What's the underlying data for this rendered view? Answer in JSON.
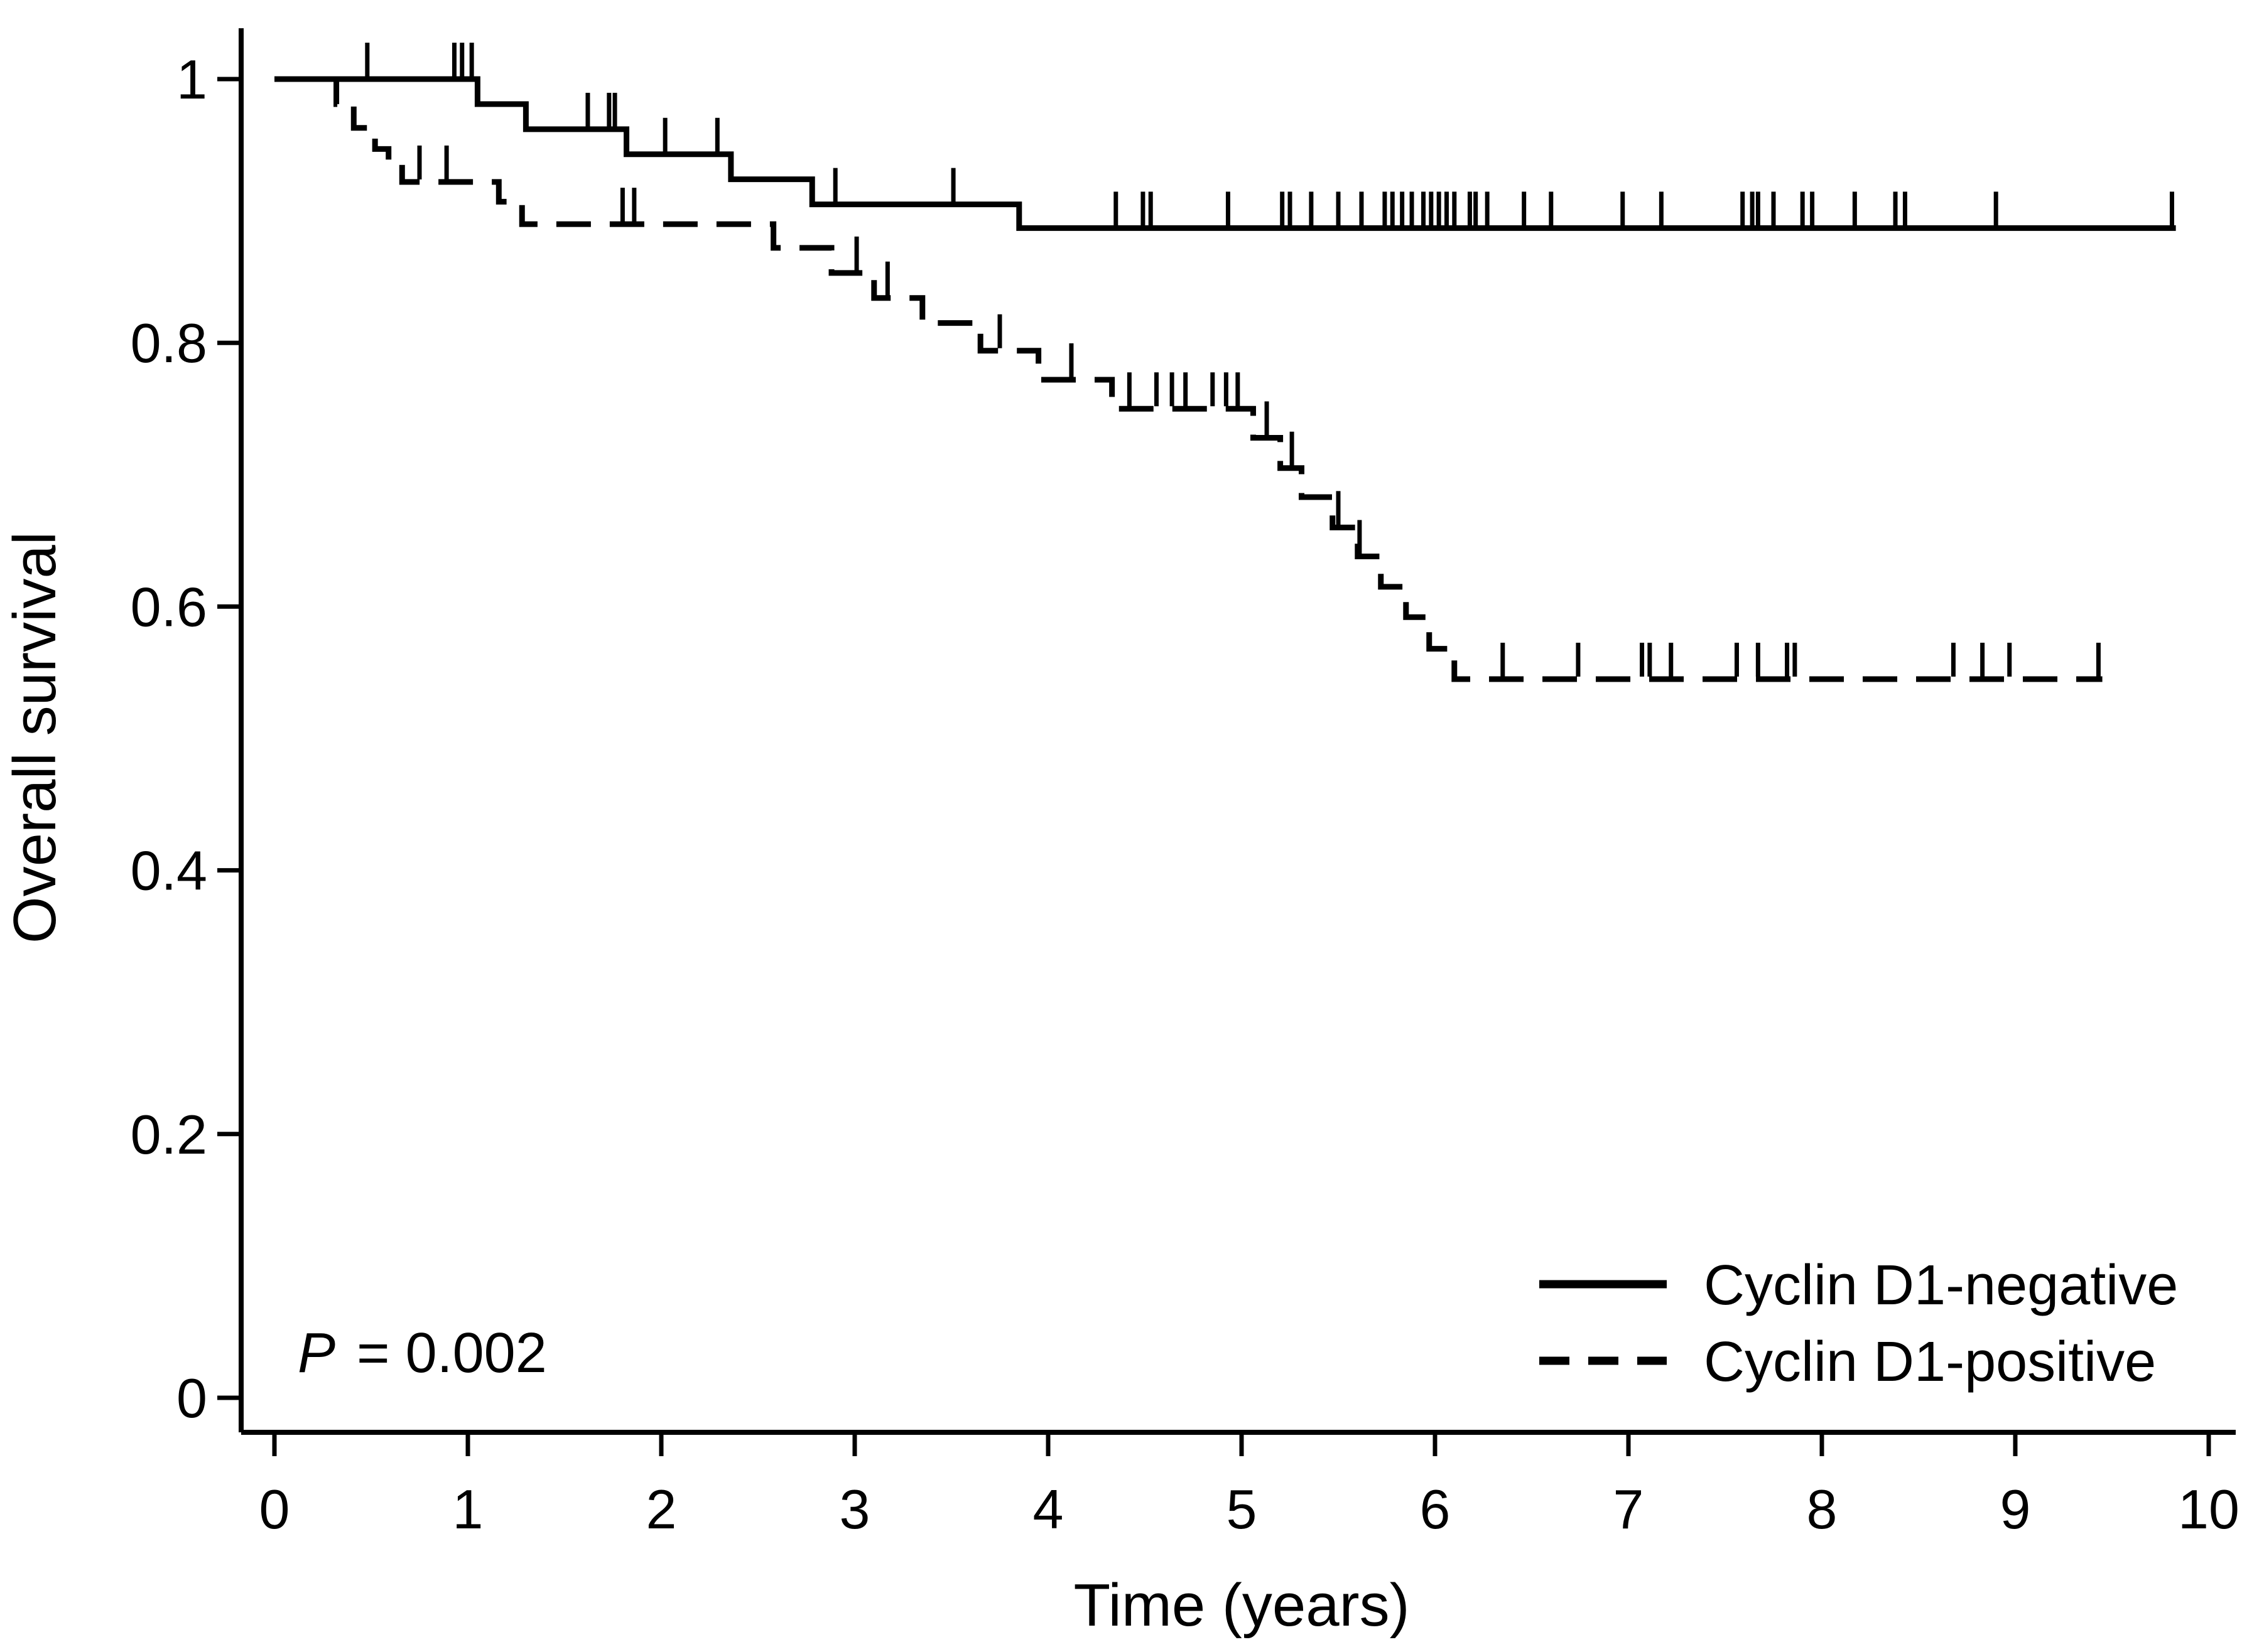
{
  "chart_data": {
    "type": "line",
    "subtype": "kaplan-meier-step",
    "title": "",
    "xlabel": "Time (years)",
    "ylabel": "Overall survival",
    "xlim": [
      0,
      10
    ],
    "ylim": [
      0,
      1
    ],
    "grid": false,
    "x_ticks": {
      "values": [
        0,
        1,
        2,
        3,
        4,
        5,
        6,
        7,
        8,
        9,
        10
      ],
      "labels": [
        "0",
        "1",
        "2",
        "3",
        "4",
        "5",
        "6",
        "7",
        "8",
        "9",
        "10"
      ]
    },
    "y_ticks": {
      "values": [
        1,
        0.8,
        0.6,
        0.4,
        0.2,
        0
      ],
      "labels": [
        "1",
        "0.8",
        "0.6",
        "0.4",
        "0.2",
        "0"
      ]
    },
    "annotation": {
      "p_label": "P",
      "p_rest": "= 0.002"
    },
    "legend": {
      "position": "bottom-right"
    },
    "colors": {
      "line": "#000000",
      "background": "#ffffff"
    },
    "series": [
      {
        "name": "Cyclin D1-negative",
        "line_style": "solid",
        "steps": [
          [
            0,
            1.0
          ],
          [
            1.05,
            0.981
          ],
          [
            1.3,
            0.962
          ],
          [
            1.82,
            0.943
          ],
          [
            2.36,
            0.924
          ],
          [
            2.78,
            0.905
          ],
          [
            3.85,
            0.887
          ]
        ],
        "end_time": 9.83,
        "censor_times": [
          0.48,
          0.93,
          0.97,
          1.02,
          1.62,
          1.73,
          1.76,
          2.02,
          2.29,
          2.9,
          3.51,
          4.35,
          4.49,
          4.53,
          4.93,
          5.21,
          5.25,
          5.36,
          5.5,
          5.62,
          5.74,
          5.78,
          5.83,
          5.88,
          5.94,
          5.98,
          6.02,
          6.06,
          6.1,
          6.18,
          6.21,
          6.27,
          6.46,
          6.6,
          6.97,
          7.17,
          7.59,
          7.64,
          7.67,
          7.75,
          7.9,
          7.95,
          8.17,
          8.38,
          8.43,
          8.9,
          9.81
        ]
      },
      {
        "name": "Cyclin D1-positive",
        "line_style": "dashed",
        "steps": [
          [
            0,
            1.0
          ],
          [
            0.32,
            0.981
          ],
          [
            0.41,
            0.963
          ],
          [
            0.52,
            0.947
          ],
          [
            0.59,
            0.937
          ],
          [
            0.66,
            0.922
          ],
          [
            1.16,
            0.907
          ],
          [
            1.28,
            0.89
          ],
          [
            2.58,
            0.872
          ],
          [
            2.88,
            0.853
          ],
          [
            3.1,
            0.834
          ],
          [
            3.35,
            0.815
          ],
          [
            3.65,
            0.794
          ],
          [
            3.95,
            0.772
          ],
          [
            4.33,
            0.75
          ],
          [
            5.06,
            0.728
          ],
          [
            5.2,
            0.705
          ],
          [
            5.31,
            0.683
          ],
          [
            5.47,
            0.66
          ],
          [
            5.6,
            0.638
          ],
          [
            5.72,
            0.615
          ],
          [
            5.85,
            0.592
          ],
          [
            5.97,
            0.568
          ],
          [
            6.1,
            0.545
          ]
        ],
        "end_time": 9.45,
        "censor_times": [
          0.75,
          0.89,
          1.8,
          1.86,
          3.01,
          3.17,
          3.75,
          4.12,
          4.42,
          4.56,
          4.64,
          4.71,
          4.85,
          4.92,
          4.98,
          5.13,
          5.26,
          5.5,
          5.61,
          6.35,
          6.74,
          7.07,
          7.11,
          7.22,
          7.56,
          7.67,
          7.82,
          7.86,
          8.68,
          8.83,
          8.97,
          9.43
        ]
      }
    ]
  }
}
